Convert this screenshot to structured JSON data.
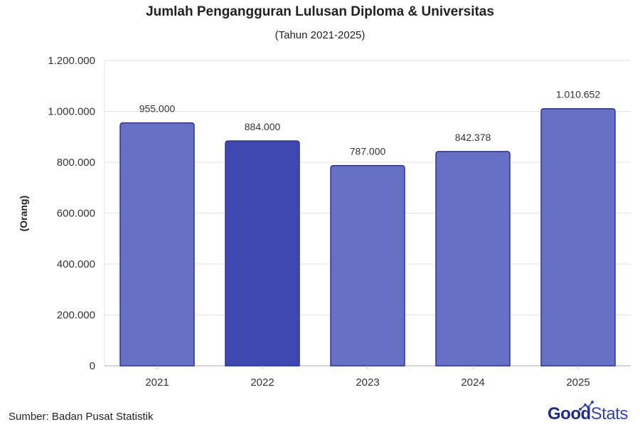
{
  "chart_data": {
    "type": "bar",
    "title": "Jumlah Pengangguran Lulusan Diploma & Universitas",
    "subtitle": "(Tahun 2021-2025)",
    "ylabel": "(Orang)",
    "xlabel": "",
    "categories": [
      "2021",
      "2022",
      "2023",
      "2024",
      "2025"
    ],
    "values": [
      955000,
      884000,
      787000,
      842378,
      1010652
    ],
    "value_labels": [
      "955.000",
      "884.000",
      "787.000",
      "842.378",
      "1.010.652"
    ],
    "ylim": [
      0,
      1200000
    ],
    "yticks": [
      0,
      200000,
      400000,
      600000,
      800000,
      1000000,
      1200000
    ],
    "ytick_labels": [
      "0",
      "200.000",
      "400.000",
      "600.000",
      "800.000",
      "1.000.000",
      "1.200.000"
    ],
    "grid": true,
    "colors": {
      "bar": "#6670c4",
      "bar_highlight": "#3f47b0",
      "bar_border": "#2b3399",
      "grid": "#e3e3e3"
    },
    "highlight_index": 1
  },
  "footer": {
    "source": "Sumber: Badan Pusat Statistik"
  },
  "logo": {
    "bold": "Good",
    "light": "Stats"
  }
}
